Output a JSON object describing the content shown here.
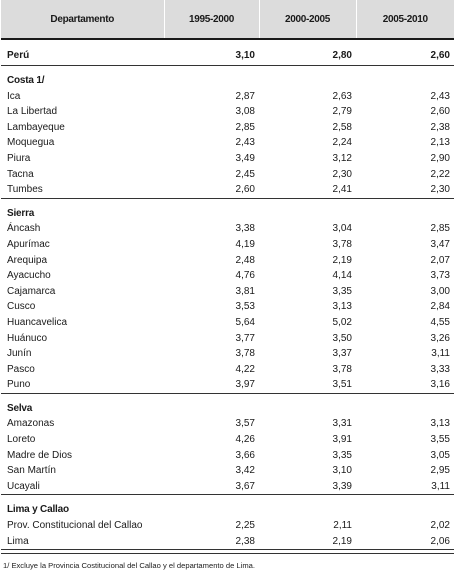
{
  "table": {
    "headers": [
      "Departamento",
      "1995-2000",
      "2000-2005",
      "2005-2010"
    ],
    "total": {
      "name": "Perú",
      "values": [
        "3,10",
        "2,80",
        "2,60"
      ]
    },
    "regions": [
      {
        "name": "Costa 1/",
        "rows": [
          {
            "name": "Ica",
            "values": [
              "2,87",
              "2,63",
              "2,43"
            ]
          },
          {
            "name": "La Libertad",
            "values": [
              "3,08",
              "2,79",
              "2,60"
            ]
          },
          {
            "name": "Lambayeque",
            "values": [
              "2,85",
              "2,58",
              "2,38"
            ]
          },
          {
            "name": "Moquegua",
            "values": [
              "2,43",
              "2,24",
              "2,13"
            ]
          },
          {
            "name": "Piura",
            "values": [
              "3,49",
              "3,12",
              "2,90"
            ]
          },
          {
            "name": "Tacna",
            "values": [
              "2,45",
              "2,30",
              "2,22"
            ]
          },
          {
            "name": "Tumbes",
            "values": [
              "2,60",
              "2,41",
              "2,30"
            ]
          }
        ]
      },
      {
        "name": "Sierra",
        "rows": [
          {
            "name": "Áncash",
            "values": [
              "3,38",
              "3,04",
              "2,85"
            ]
          },
          {
            "name": "Apurímac",
            "values": [
              "4,19",
              "3,78",
              "3,47"
            ]
          },
          {
            "name": "Arequipa",
            "values": [
              "2,48",
              "2,19",
              "2,07"
            ]
          },
          {
            "name": "Ayacucho",
            "values": [
              "4,76",
              "4,14",
              "3,73"
            ]
          },
          {
            "name": "Cajamarca",
            "values": [
              "3,81",
              "3,35",
              "3,00"
            ]
          },
          {
            "name": "Cusco",
            "values": [
              "3,53",
              "3,13",
              "2,84"
            ]
          },
          {
            "name": "Huancavelica",
            "values": [
              "5,64",
              "5,02",
              "4,55"
            ]
          },
          {
            "name": "Huánuco",
            "values": [
              "3,77",
              "3,50",
              "3,26"
            ]
          },
          {
            "name": "Junín",
            "values": [
              "3,78",
              "3,37",
              "3,11"
            ]
          },
          {
            "name": "Pasco",
            "values": [
              "4,22",
              "3,78",
              "3,33"
            ]
          },
          {
            "name": "Puno",
            "values": [
              "3,97",
              "3,51",
              "3,16"
            ]
          }
        ]
      },
      {
        "name": "Selva",
        "rows": [
          {
            "name": "Amazonas",
            "values": [
              "3,57",
              "3,31",
              "3,13"
            ]
          },
          {
            "name": "Loreto",
            "values": [
              "4,26",
              "3,91",
              "3,55"
            ]
          },
          {
            "name": "Madre de Dios",
            "values": [
              "3,66",
              "3,35",
              "3,05"
            ]
          },
          {
            "name": "San Martín",
            "values": [
              "3,42",
              "3,10",
              "2,95"
            ]
          },
          {
            "name": "Ucayali",
            "values": [
              "3,67",
              "3,39",
              "3,11"
            ]
          }
        ]
      },
      {
        "name": "Lima y Callao",
        "rows": [
          {
            "name": "Prov. Constitucional del Callao",
            "values": [
              "2,25",
              "2,11",
              "2,02"
            ]
          },
          {
            "name": "Lima",
            "values": [
              "2,38",
              "2,19",
              "2,06"
            ]
          }
        ]
      }
    ]
  },
  "footnote": "1/ Excluye la Provincia Costitucional del Callao y el departamento de Lima."
}
